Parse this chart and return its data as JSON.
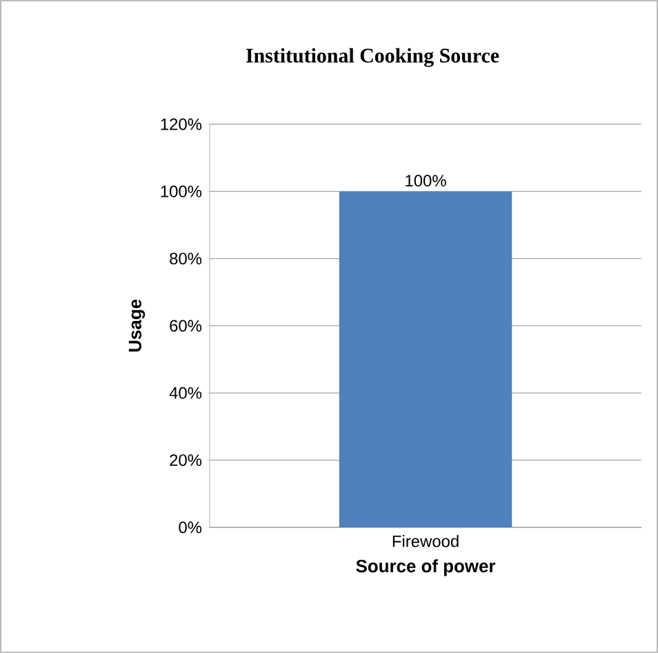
{
  "chart_data": {
    "type": "bar",
    "title": "Institutional Cooking Source",
    "xlabel": "Source of power",
    "ylabel": "Usage",
    "categories": [
      "Firewood"
    ],
    "values": [
      100
    ],
    "color": "#4f81bd",
    "ylim": [
      0,
      120
    ],
    "yticks": [
      {
        "value": 0,
        "label": "0%"
      },
      {
        "value": 20,
        "label": "20%"
      },
      {
        "value": 40,
        "label": "40%"
      },
      {
        "value": 60,
        "label": "60%"
      },
      {
        "value": 80,
        "label": "80%"
      },
      {
        "value": 100,
        "label": "100%"
      },
      {
        "value": 120,
        "label": "120%"
      }
    ],
    "value_labels": [
      "100%"
    ],
    "grid": "y"
  }
}
